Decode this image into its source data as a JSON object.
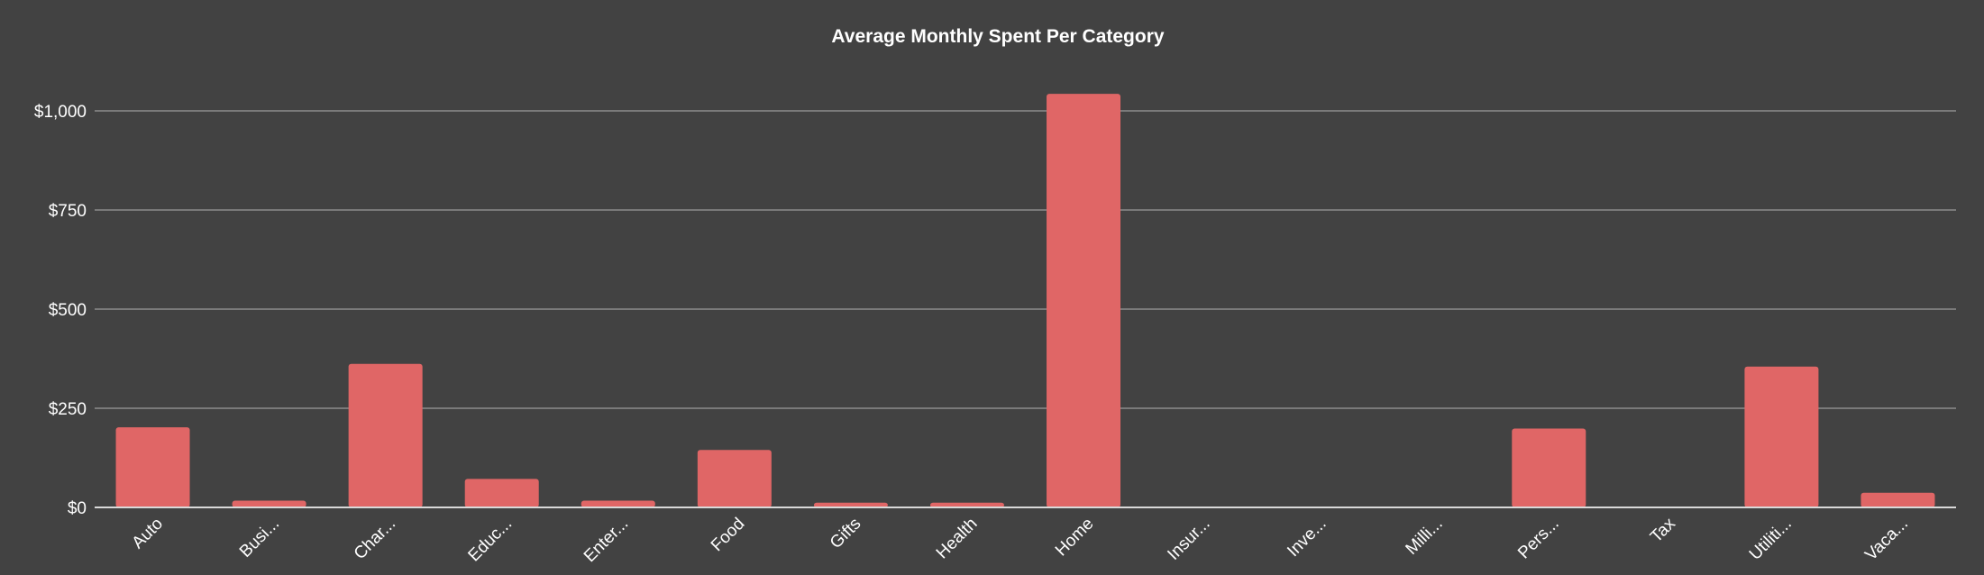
{
  "chart_data": {
    "type": "bar",
    "title": "Average Monthly Spent Per Category",
    "xlabel": "",
    "ylabel": "",
    "categories": [
      "Auto",
      "Busi...",
      "Char...",
      "Educ...",
      "Enter...",
      "Food",
      "Gifts",
      "Health",
      "Home",
      "Insur...",
      "Inve...",
      "Milli...",
      "Pers...",
      "Tax",
      "Utiliti...",
      "Vaca..."
    ],
    "values": [
      202,
      17,
      362,
      72,
      17,
      145,
      12,
      12,
      1043,
      0,
      0,
      0,
      199,
      0,
      355,
      37
    ],
    "ylim": [
      0,
      1000
    ],
    "yticks": [
      {
        "value": 0,
        "label": "$0"
      },
      {
        "value": 250,
        "label": "$250"
      },
      {
        "value": 500,
        "label": "$500"
      },
      {
        "value": 750,
        "label": "$750"
      },
      {
        "value": 1000,
        "label": "$1,000"
      }
    ],
    "bar_color": "#e06666",
    "background": "#424242",
    "grid": true,
    "legend": "none"
  }
}
